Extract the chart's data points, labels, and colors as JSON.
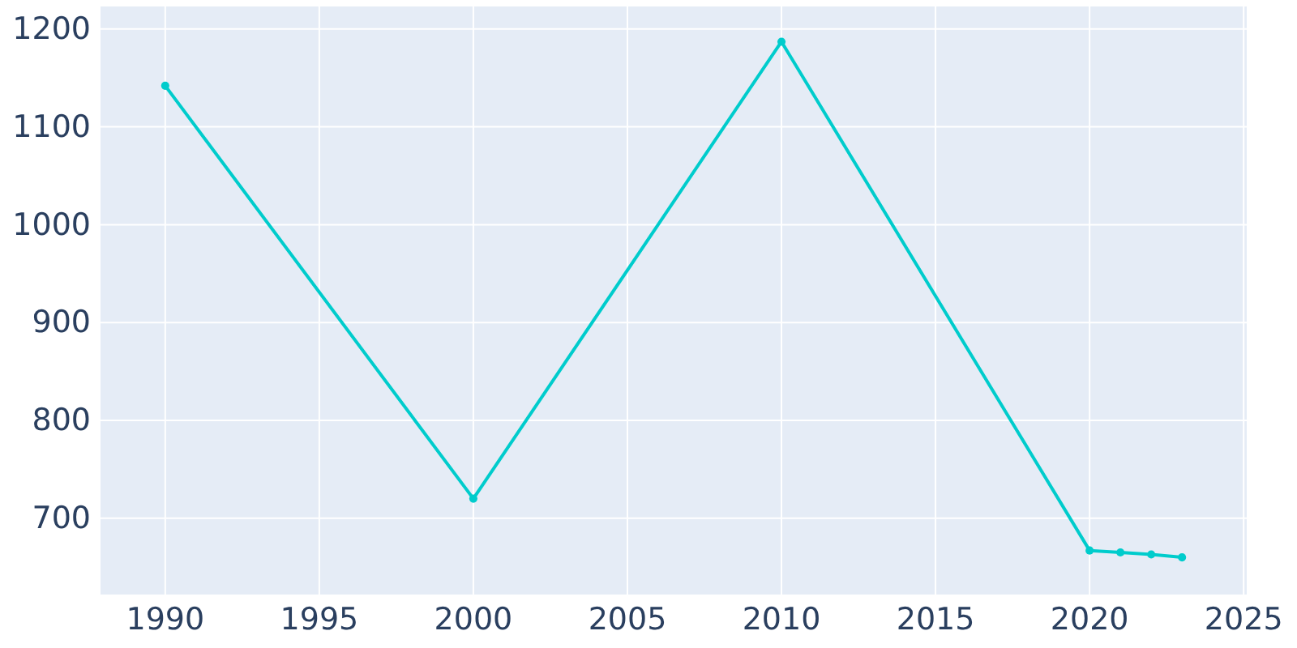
{
  "chart_data": {
    "type": "line",
    "x": [
      1990,
      2000,
      2010,
      2020,
      2021,
      2022,
      2023
    ],
    "series": [
      {
        "color": "#00cccc",
        "values": [
          1142,
          720,
          1187,
          667,
          665,
          663,
          660
        ]
      }
    ],
    "xlim": [
      1987.9,
      2025.1
    ],
    "ylim": [
      622,
      1223
    ],
    "xticks": [
      1990,
      1995,
      2000,
      2005,
      2010,
      2015,
      2020,
      2025
    ],
    "yticks": [
      700,
      800,
      900,
      1000,
      1100,
      1200
    ],
    "grid": true,
    "marker": "circle",
    "line_style": "solid"
  }
}
